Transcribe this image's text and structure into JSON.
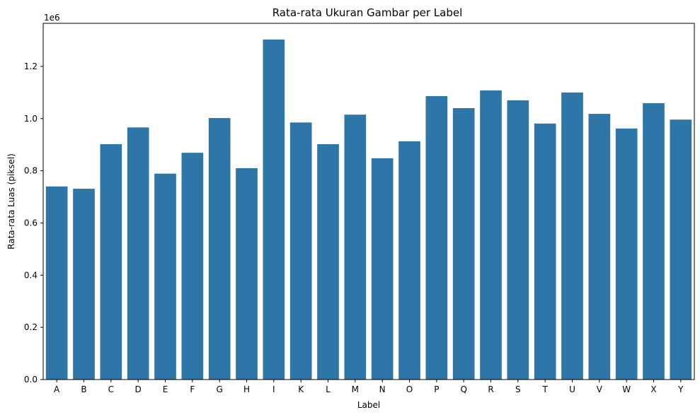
{
  "chart_data": {
    "type": "bar",
    "title": "Rata-rata Ukuran Gambar per Label",
    "xlabel": "Label",
    "ylabel": "Rata-rata Luas (piksel)",
    "y_offset_label": "1e6",
    "ylim": [
      0,
      1.365
    ],
    "yticks": [
      0.0,
      0.2,
      0.4,
      0.6,
      0.8,
      1.0,
      1.2
    ],
    "ytick_labels": [
      "0.0",
      "0.2",
      "0.4",
      "0.6",
      "0.8",
      "1.0",
      "1.2"
    ],
    "categories": [
      "A",
      "B",
      "C",
      "D",
      "E",
      "F",
      "G",
      "H",
      "I",
      "K",
      "L",
      "M",
      "N",
      "O",
      "P",
      "Q",
      "R",
      "S",
      "T",
      "U",
      "V",
      "W",
      "X",
      "Y"
    ],
    "values": [
      0.74,
      0.731,
      0.902,
      0.966,
      0.789,
      0.869,
      1.002,
      0.81,
      1.303,
      0.985,
      0.902,
      1.015,
      0.848,
      0.913,
      1.086,
      1.04,
      1.108,
      1.07,
      0.981,
      1.1,
      1.018,
      0.962,
      1.059,
      0.996
    ],
    "bar_color": "#2e75a8",
    "grid": false,
    "legend": "none"
  }
}
